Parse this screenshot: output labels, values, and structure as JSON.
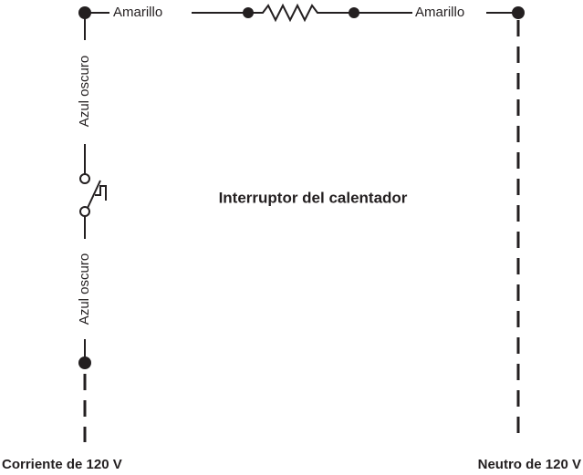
{
  "wires": {
    "top_left": "Amarillo",
    "top_right": "Amarillo",
    "left_upper": "Azul oscuro",
    "left_lower": "Azul oscuro"
  },
  "switch_label": "Interruptor del calentador",
  "terminals": {
    "hot": "Corriente de 120 V",
    "neutral": "Neutro de 120 V"
  }
}
